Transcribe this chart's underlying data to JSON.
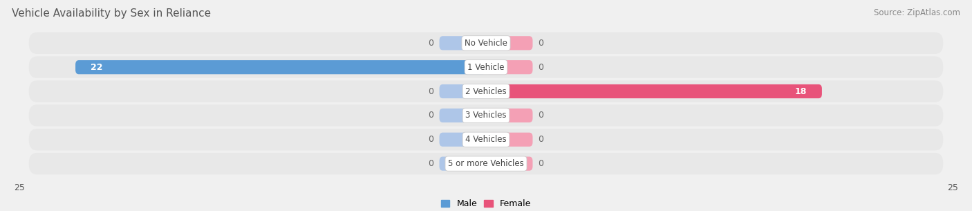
{
  "title": "Vehicle Availability by Sex in Reliance",
  "source": "Source: ZipAtlas.com",
  "categories": [
    "No Vehicle",
    "1 Vehicle",
    "2 Vehicles",
    "3 Vehicles",
    "4 Vehicles",
    "5 or more Vehicles"
  ],
  "male_values": [
    0,
    22,
    0,
    0,
    0,
    0
  ],
  "female_values": [
    0,
    0,
    18,
    0,
    0,
    0
  ],
  "male_color_full": "#5b9bd5",
  "male_color_stub": "#aec6e8",
  "female_color_full": "#e8537a",
  "female_color_stub": "#f4a0b5",
  "male_label": "Male",
  "female_label": "Female",
  "xlim": [
    -25,
    25
  ],
  "xticks": [
    -25,
    25
  ],
  "bar_height": 0.58,
  "stub_size": 2.5,
  "background_color": "#f0f0f0",
  "row_bg_color": "#e8e8e8",
  "title_fontsize": 11,
  "source_fontsize": 8.5,
  "label_fontsize": 9,
  "value_label_fontsize": 9,
  "category_fontsize": 8.5,
  "figsize": [
    14.06,
    3.05
  ],
  "dpi": 100
}
